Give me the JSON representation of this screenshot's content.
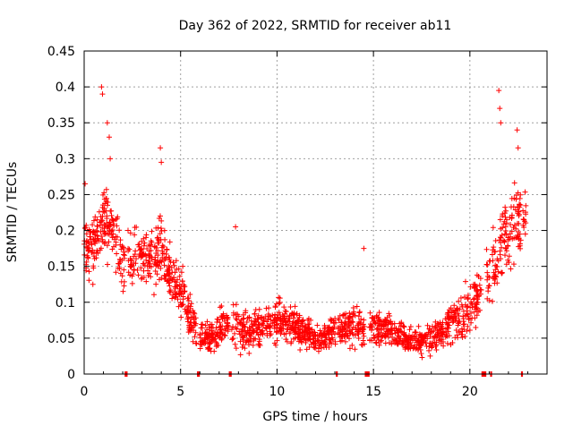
{
  "chart_data": {
    "type": "scatter",
    "title": "Day 362 of 2022, SRMTID for receiver ab11",
    "xlabel": "GPS time / hours",
    "ylabel": "SRMTID / TECUs",
    "xlim": [
      0,
      24
    ],
    "ylim": [
      0,
      0.45
    ],
    "x_ticks": [
      0,
      5,
      10,
      15,
      20
    ],
    "y_ticks": [
      0,
      0.05,
      0.1,
      0.15,
      0.2,
      0.25,
      0.3,
      0.35,
      0.4,
      0.45
    ],
    "x_tick_labels": [
      "0",
      "5",
      "10",
      "15",
      "20"
    ],
    "y_tick_labels": [
      "0",
      "0.05",
      "0.1",
      "0.15",
      "0.2",
      "0.25",
      "0.3",
      "0.35",
      "0.4",
      "0.45"
    ],
    "grid": true,
    "marker": "+",
    "color": "#ff0000",
    "series_envelope": {
      "name": "SRMTID",
      "x": [
        0,
        0.5,
        1.0,
        1.5,
        2.0,
        2.5,
        3.0,
        3.5,
        4.0,
        4.5,
        5.0,
        5.5,
        6.0,
        6.5,
        7.0,
        7.5,
        8.0,
        8.5,
        9.0,
        9.5,
        10.0,
        10.5,
        11.0,
        11.5,
        12.0,
        12.5,
        13.0,
        13.5,
        14.0,
        14.5,
        15.0,
        15.5,
        16.0,
        16.5,
        17.0,
        17.5,
        18.0,
        18.5,
        19.0,
        19.5,
        20.0,
        20.5,
        21.0,
        21.5,
        22.0,
        22.5
      ],
      "median": [
        0.17,
        0.18,
        0.22,
        0.2,
        0.15,
        0.17,
        0.16,
        0.15,
        0.18,
        0.14,
        0.12,
        0.08,
        0.05,
        0.05,
        0.06,
        0.07,
        0.06,
        0.06,
        0.07,
        0.07,
        0.075,
        0.07,
        0.065,
        0.055,
        0.05,
        0.05,
        0.06,
        0.065,
        0.07,
        0.06,
        0.06,
        0.065,
        0.06,
        0.055,
        0.045,
        0.045,
        0.05,
        0.06,
        0.07,
        0.08,
        0.09,
        0.11,
        0.14,
        0.17,
        0.2,
        0.21
      ],
      "spread": [
        0.06,
        0.06,
        0.08,
        0.07,
        0.06,
        0.06,
        0.06,
        0.06,
        0.07,
        0.05,
        0.05,
        0.04,
        0.025,
        0.03,
        0.035,
        0.04,
        0.04,
        0.04,
        0.04,
        0.04,
        0.045,
        0.04,
        0.035,
        0.03,
        0.03,
        0.03,
        0.035,
        0.04,
        0.04,
        0.035,
        0.035,
        0.035,
        0.035,
        0.03,
        0.03,
        0.03,
        0.035,
        0.035,
        0.04,
        0.045,
        0.05,
        0.06,
        0.07,
        0.08,
        0.08,
        0.07
      ]
    },
    "outliers": [
      {
        "x": 0.9,
        "y": 0.4
      },
      {
        "x": 0.95,
        "y": 0.39
      },
      {
        "x": 1.2,
        "y": 0.35
      },
      {
        "x": 1.3,
        "y": 0.33
      },
      {
        "x": 1.35,
        "y": 0.3
      },
      {
        "x": 3.95,
        "y": 0.315
      },
      {
        "x": 4.0,
        "y": 0.295
      },
      {
        "x": 7.85,
        "y": 0.205
      },
      {
        "x": 14.5,
        "y": 0.175
      },
      {
        "x": 21.5,
        "y": 0.395
      },
      {
        "x": 21.55,
        "y": 0.37
      },
      {
        "x": 21.6,
        "y": 0.35
      },
      {
        "x": 22.45,
        "y": 0.34
      },
      {
        "x": 22.5,
        "y": 0.315
      },
      {
        "x": 0.05,
        "y": 0.265
      }
    ],
    "data_gaps": [
      {
        "from": 2.1,
        "to": 2.25
      },
      {
        "from": 5.85,
        "to": 6.0
      },
      {
        "from": 7.5,
        "to": 7.65
      },
      {
        "from": 13.05,
        "to": 13.15
      },
      {
        "from": 14.55,
        "to": 14.8
      },
      {
        "from": 20.6,
        "to": 20.85
      },
      {
        "from": 21.05,
        "to": 21.15
      },
      {
        "from": 22.65,
        "to": 22.75
      }
    ]
  }
}
